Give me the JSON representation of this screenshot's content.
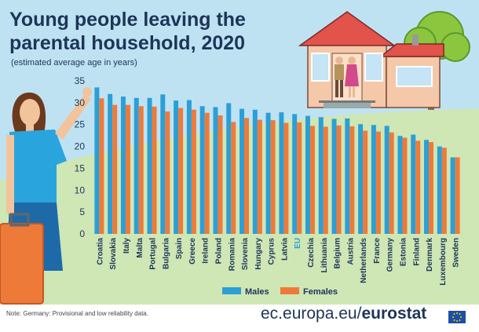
{
  "title_line1": "Young people leaving the",
  "title_line2": "parental household, 2020",
  "subtitle": "(estimated average age in years)",
  "note": "Note: Germany: Provisional and low reliability data.",
  "footer_prefix": "ec.europa.eu/",
  "footer_brand": "eurostat",
  "colors": {
    "males": "#2b9fd6",
    "females": "#ee7a3a",
    "eu_label": "#2b9fd6",
    "sky": "#bfe2f3",
    "grass": "#cfe6b5",
    "title": "#1d3557"
  },
  "chart_data": {
    "type": "bar",
    "ylim": [
      0,
      35
    ],
    "yticks": [
      0,
      5,
      10,
      15,
      20,
      25,
      30,
      35
    ],
    "categories": [
      "Croatia",
      "Slovakia",
      "Italy",
      "Malta",
      "Portugal",
      "Bulgaria",
      "Spain",
      "Greece",
      "Ireland",
      "Poland",
      "Romania",
      "Slovenia",
      "Hungary",
      "Cyprus",
      "Latvia",
      "EU",
      "Czechia",
      "Lithuania",
      "Belgium",
      "Austria",
      "Netherlands",
      "France",
      "Germany",
      "Estonia",
      "Finland",
      "Denmark",
      "Luxembourg",
      "Sweden"
    ],
    "series": [
      {
        "name": "Males",
        "values": [
          33.5,
          32.0,
          31.4,
          31.1,
          31.1,
          31.9,
          30.5,
          30.6,
          29.2,
          29.0,
          29.9,
          28.6,
          28.4,
          27.7,
          27.8,
          27.4,
          27.0,
          26.7,
          26.3,
          26.4,
          25.1,
          24.9,
          24.7,
          22.4,
          22.7,
          21.5,
          20.0,
          17.5
        ]
      },
      {
        "name": "Females",
        "values": [
          31.0,
          29.5,
          29.5,
          29.2,
          29.1,
          28.0,
          28.8,
          28.4,
          27.7,
          27.1,
          25.6,
          26.5,
          26.1,
          26.0,
          25.4,
          25.5,
          24.7,
          24.5,
          24.8,
          24.6,
          23.6,
          23.4,
          23.2,
          22.0,
          21.3,
          21.0,
          19.7,
          17.5
        ]
      }
    ],
    "legend": [
      "Males",
      "Females"
    ],
    "legend_position": "bottom-center"
  }
}
